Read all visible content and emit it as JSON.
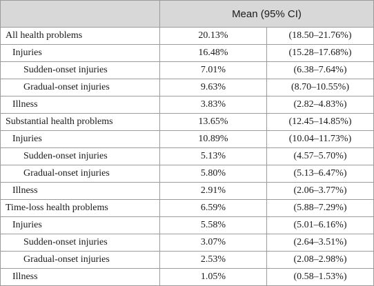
{
  "header": {
    "col1": "",
    "mean_ci": "Mean (95% CI)"
  },
  "rows": [
    {
      "label": "All health problems",
      "level": 0,
      "mean": "20.13%",
      "ci": "(18.50–21.76%)"
    },
    {
      "label": "Injuries",
      "level": 1,
      "mean": "16.48%",
      "ci": "(15.28–17.68%)"
    },
    {
      "label": "Sudden-onset injuries",
      "level": 2,
      "mean": "7.01%",
      "ci": "(6.38–7.64%)"
    },
    {
      "label": "Gradual-onset injuries",
      "level": 2,
      "mean": "9.63%",
      "ci": "(8.70–10.55%)"
    },
    {
      "label": "Illness",
      "level": 1,
      "mean": "3.83%",
      "ci": "(2.82–4.83%)"
    },
    {
      "label": "Substantial health problems",
      "level": 0,
      "mean": "13.65%",
      "ci": "(12.45–14.85%)"
    },
    {
      "label": "Injuries",
      "level": 1,
      "mean": "10.89%",
      "ci": "(10.04–11.73%)"
    },
    {
      "label": "Sudden-onset injuries",
      "level": 2,
      "mean": "5.13%",
      "ci": "(4.57–5.70%)"
    },
    {
      "label": "Gradual-onset injuries",
      "level": 2,
      "mean": "5.80%",
      "ci": "(5.13–6.47%)"
    },
    {
      "label": "Illness",
      "level": 1,
      "mean": "2.91%",
      "ci": "(2.06–3.77%)"
    },
    {
      "label": "Time-loss health problems",
      "level": 0,
      "mean": "6.59%",
      "ci": "(5.88–7.29%)"
    },
    {
      "label": "Injuries",
      "level": 1,
      "mean": "5.58%",
      "ci": "(5.01–6.16%)"
    },
    {
      "label": "Sudden-onset injuries",
      "level": 2,
      "mean": "3.07%",
      "ci": "(2.64–3.51%)"
    },
    {
      "label": "Gradual-onset injuries",
      "level": 2,
      "mean": "2.53%",
      "ci": "(2.08–2.98%)"
    },
    {
      "label": "Illness",
      "level": 1,
      "mean": "1.05%",
      "ci": "(0.58–1.53%)"
    }
  ]
}
